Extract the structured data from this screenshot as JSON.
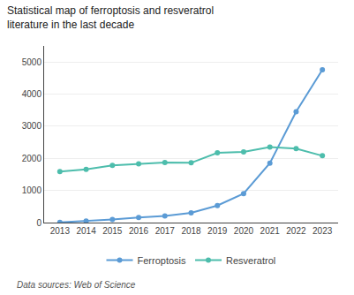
{
  "chart_data": {
    "type": "line",
    "title": "Statistical map of ferroptosis and resveratrol literature in the last decade",
    "annotations": [
      "Data sources: Web of Science"
    ],
    "x": [
      2013,
      2014,
      2015,
      2016,
      2017,
      2018,
      2019,
      2020,
      2021,
      2022,
      2023
    ],
    "series": [
      {
        "name": "Ferroptosis",
        "color": "#5b9bd5",
        "values": [
          10,
          45,
          95,
          155,
          205,
          305,
          530,
          900,
          1850,
          3450,
          4760
        ]
      },
      {
        "name": "Resveratrol",
        "color": "#4dbdac",
        "values": [
          1590,
          1660,
          1780,
          1830,
          1870,
          1860,
          2170,
          2200,
          2350,
          2300,
          2080
        ]
      }
    ],
    "xlim": [
      2012.4,
      2023.6
    ],
    "xticks": [
      2013,
      2014,
      2015,
      2016,
      2017,
      2018,
      2019,
      2020,
      2021,
      2022,
      2023
    ],
    "ylim": [
      0,
      5500
    ],
    "yticks": [
      0,
      1000,
      2000,
      3000,
      4000,
      5000
    ],
    "grid": true,
    "legend": "bottom",
    "marker": "circle",
    "line_style": "solid"
  }
}
